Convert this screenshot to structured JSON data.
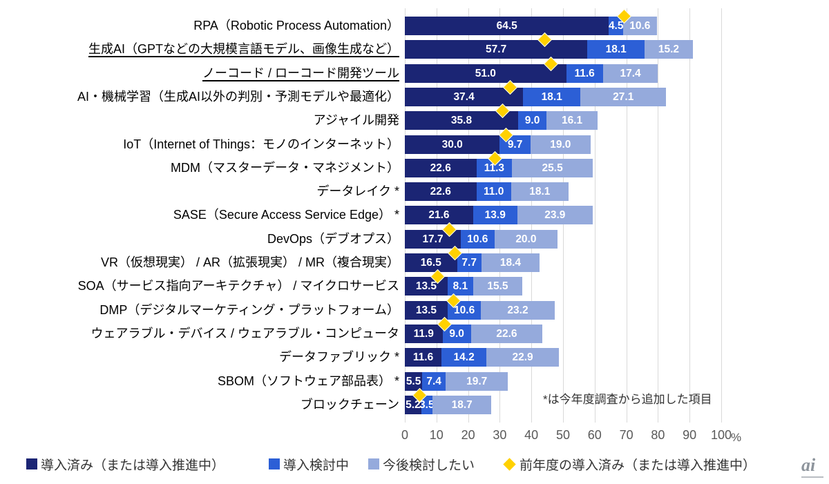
{
  "chart_data": {
    "type": "bar",
    "orientation": "horizontal",
    "stacked": true,
    "xlim": [
      0,
      100
    ],
    "x_ticks": [
      0,
      10,
      20,
      30,
      40,
      50,
      60,
      70,
      80,
      90,
      100
    ],
    "unit": "%",
    "grid": "vertical",
    "legend_position": "bottom",
    "series_names": [
      "導入済み（または導入推進中）",
      "導入検討中",
      "今後検討したい"
    ],
    "marker_series_name": "前年度の導入済み（または導入推進中）",
    "annotation": "*は今年度調査から追加した項目",
    "items": [
      {
        "label": "RPA（Robotic Process Automation）",
        "adopted": 64.5,
        "considering": 4.5,
        "future": 10.6,
        "prev_year": 69.4,
        "underline": false,
        "new_item": false
      },
      {
        "label": "生成AI（GPTなどの大規模言語モデル、画像生成など）",
        "adopted": 57.7,
        "considering": 18.1,
        "future": 15.2,
        "prev_year": 44.4,
        "underline": true,
        "new_item": false
      },
      {
        "label": "ノーコード / ローコード開発ツール",
        "adopted": 51.0,
        "considering": 11.6,
        "future": 17.4,
        "prev_year": 46.2,
        "underline": true,
        "new_item": false
      },
      {
        "label": "AI・機械学習（生成AI以外の判別・予測モデルや最適化）",
        "adopted": 37.4,
        "considering": 18.1,
        "future": 27.1,
        "prev_year": 33.3,
        "underline": false,
        "new_item": false
      },
      {
        "label": "アジャイル開発",
        "adopted": 35.8,
        "considering": 9.0,
        "future": 16.1,
        "prev_year": 31.1,
        "underline": false,
        "new_item": false
      },
      {
        "label": "IoT（Internet of Things：モノのインターネット）",
        "adopted": 30.0,
        "considering": 9.7,
        "future": 19.0,
        "prev_year": 32.2,
        "underline": false,
        "new_item": false
      },
      {
        "label": "MDM（マスターデータ・マネジメント）",
        "adopted": 22.6,
        "considering": 11.3,
        "future": 25.5,
        "prev_year": 28.5,
        "underline": false,
        "new_item": false
      },
      {
        "label": "データレイク *",
        "adopted": 22.6,
        "considering": 11.0,
        "future": 18.1,
        "prev_year": null,
        "underline": false,
        "new_item": true
      },
      {
        "label": "SASE（Secure Access Service Edge） *",
        "adopted": 21.6,
        "considering": 13.9,
        "future": 23.9,
        "prev_year": null,
        "underline": false,
        "new_item": true
      },
      {
        "label": "DevOps（デブオプス）",
        "adopted": 17.7,
        "considering": 10.6,
        "future": 20.0,
        "prev_year": 14.3,
        "underline": false,
        "new_item": false
      },
      {
        "label": "VR（仮想現実） / AR（拡張現実） / MR（複合現実）",
        "adopted": 16.5,
        "considering": 7.7,
        "future": 18.4,
        "prev_year": 15.9,
        "underline": false,
        "new_item": false
      },
      {
        "label": "SOA（サービス指向アーキテクチャ） / マイクロサービス",
        "adopted": 13.5,
        "considering": 8.1,
        "future": 15.5,
        "prev_year": 10.5,
        "underline": false,
        "new_item": false
      },
      {
        "label": "DMP（デジタルマーケティング・プラットフォーム）",
        "adopted": 13.5,
        "considering": 10.6,
        "future": 23.2,
        "prev_year": 15.4,
        "underline": false,
        "new_item": false
      },
      {
        "label": "ウェアラブル・デバイス / ウェアラブル・コンピュータ",
        "adopted": 11.9,
        "considering": 9.0,
        "future": 22.6,
        "prev_year": 12.7,
        "underline": false,
        "new_item": false
      },
      {
        "label": "データファブリック *",
        "adopted": 11.6,
        "considering": 14.2,
        "future": 22.9,
        "prev_year": null,
        "underline": false,
        "new_item": true
      },
      {
        "label": "SBOM（ソフトウェア部品表） *",
        "adopted": 5.5,
        "considering": 7.4,
        "future": 19.7,
        "prev_year": null,
        "underline": false,
        "new_item": true
      },
      {
        "label": "ブロックチェーン",
        "adopted": 5.2,
        "considering": 3.5,
        "future": 18.7,
        "prev_year": 4.9,
        "underline": false,
        "new_item": false
      }
    ]
  },
  "legend": {
    "items": [
      {
        "label": "導入済み（または導入推進中）"
      },
      {
        "label": "導入検討中"
      },
      {
        "label": "今後検討したい"
      },
      {
        "label": "前年度の導入済み（または導入推進中）"
      }
    ]
  },
  "colors": {
    "adopted": "#1b2574",
    "considering": "#2c5fd6",
    "future": "#95aadc",
    "marker": "#ffd100",
    "gridline": "#d9d9d9",
    "axis_text": "#595959"
  },
  "logo": {
    "text": "ai"
  }
}
